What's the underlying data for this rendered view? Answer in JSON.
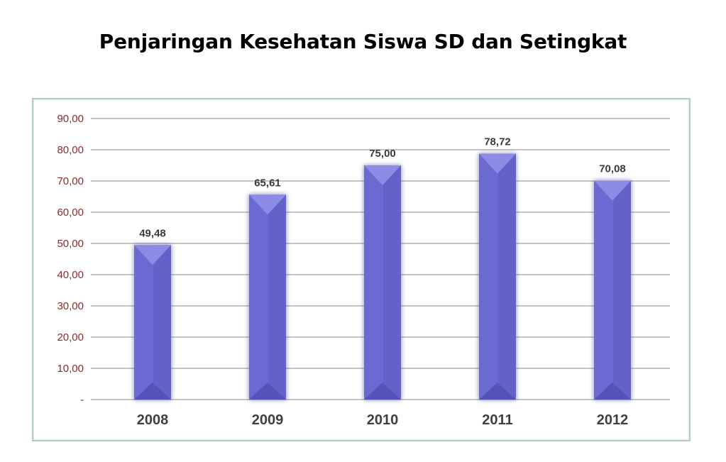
{
  "chart_data": {
    "type": "bar",
    "title": "Penjaringan Kesehatan Siswa SD dan Setingkat",
    "categories": [
      "2008",
      "2009",
      "2010",
      "2011",
      "2012"
    ],
    "series": [
      {
        "values": [
          49.48,
          65.61,
          75.0,
          78.72,
          70.08
        ]
      }
    ],
    "data_labels": [
      "49,48",
      "65,61",
      "75,00",
      "78,72",
      "70,08"
    ],
    "y_tick_values": [
      0,
      10,
      20,
      30,
      40,
      50,
      60,
      70,
      80,
      90
    ],
    "y_tick_labels": [
      "-",
      "10,00",
      "20,00",
      "30,00",
      "40,00",
      "50,00",
      "60,00",
      "70,00",
      "80,00",
      "90,00"
    ],
    "ylim": [
      0,
      90
    ],
    "grid": true,
    "legend": "none",
    "colors": {
      "bar": "#6a6ad2",
      "bar_light": "#8c8ce6",
      "bar_dark": "#5252b8",
      "grid": "#8a8a8a",
      "y_tick_text": "#8b2a2a",
      "x_tick_text": "#404040"
    }
  }
}
